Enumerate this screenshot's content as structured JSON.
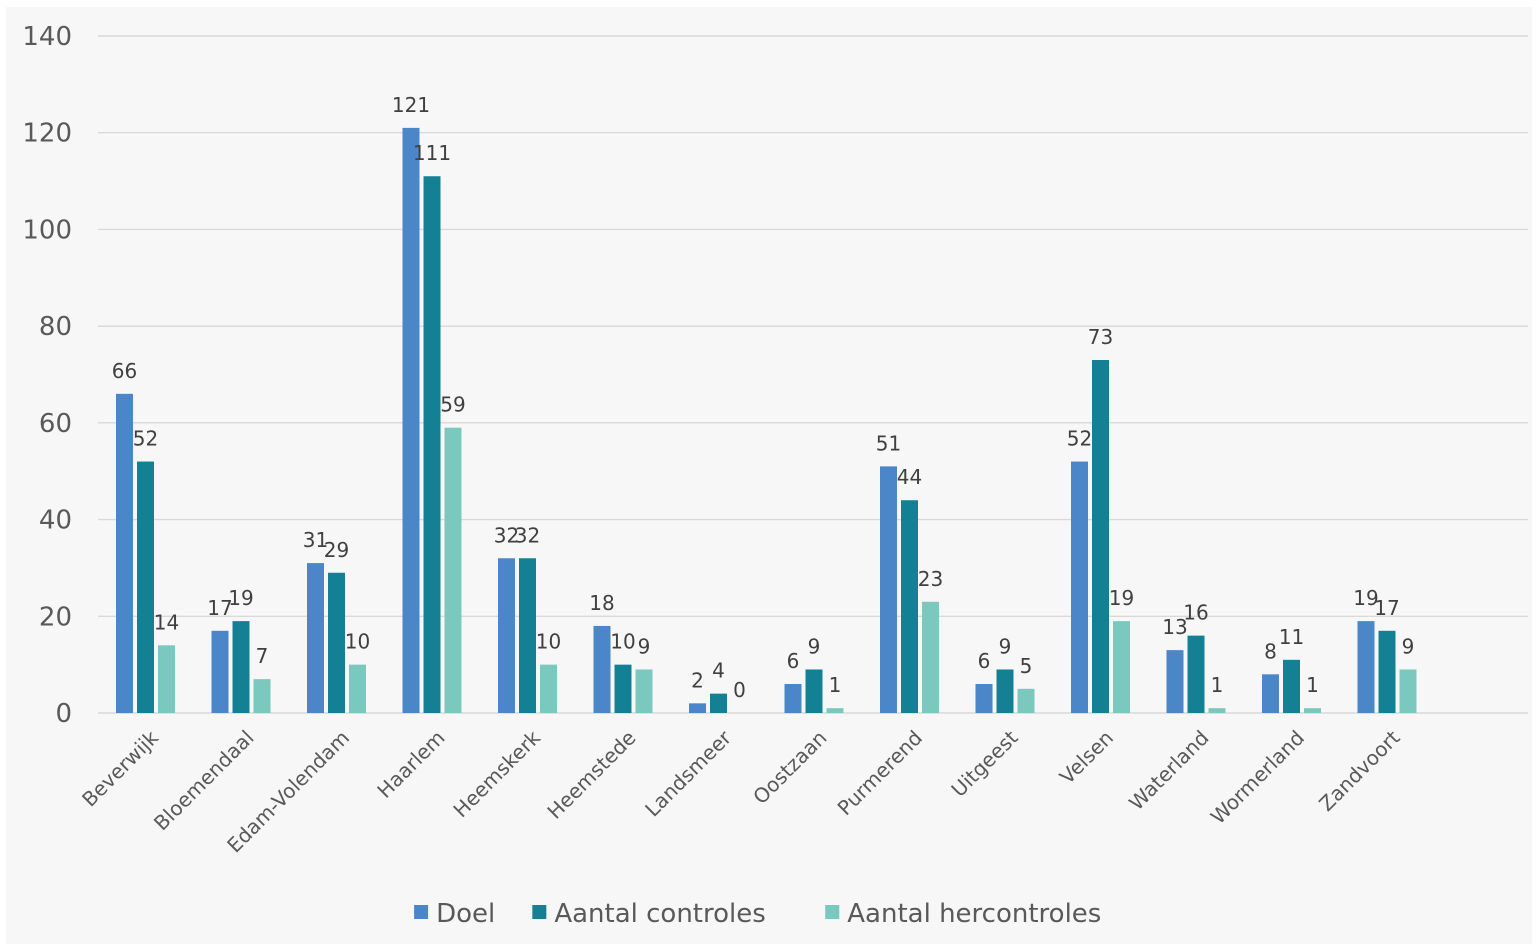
{
  "chart_data": {
    "type": "bar",
    "title": "",
    "xlabel": "",
    "ylabel": "",
    "ylim": [
      0,
      140
    ],
    "yticks": [
      0,
      20,
      40,
      60,
      80,
      100,
      120,
      140
    ],
    "grid": true,
    "legend_position": "bottom",
    "categories": [
      "Beverwijk",
      "Bloemendaal",
      "Edam-Volendam",
      "Haarlem",
      "Heemskerk",
      "Heemstede",
      "Landsmeer",
      "Oostzaan",
      "Purmerend",
      "Uitgeest",
      "Velsen",
      "Waterland",
      "Wormerland",
      "Zandvoort"
    ],
    "series": [
      {
        "name": "Doel",
        "color": "#4a86c8",
        "values": [
          66,
          17,
          31,
          121,
          32,
          18,
          2,
          6,
          51,
          6,
          52,
          13,
          8,
          19
        ]
      },
      {
        "name": "Aantal controles",
        "color": "#148094",
        "values": [
          52,
          19,
          29,
          111,
          32,
          10,
          4,
          9,
          44,
          9,
          73,
          16,
          11,
          17
        ]
      },
      {
        "name": "Aantal hercontroles",
        "color": "#7bc8be",
        "values": [
          14,
          7,
          10,
          59,
          10,
          9,
          0,
          1,
          23,
          5,
          19,
          1,
          1,
          9
        ]
      }
    ]
  }
}
